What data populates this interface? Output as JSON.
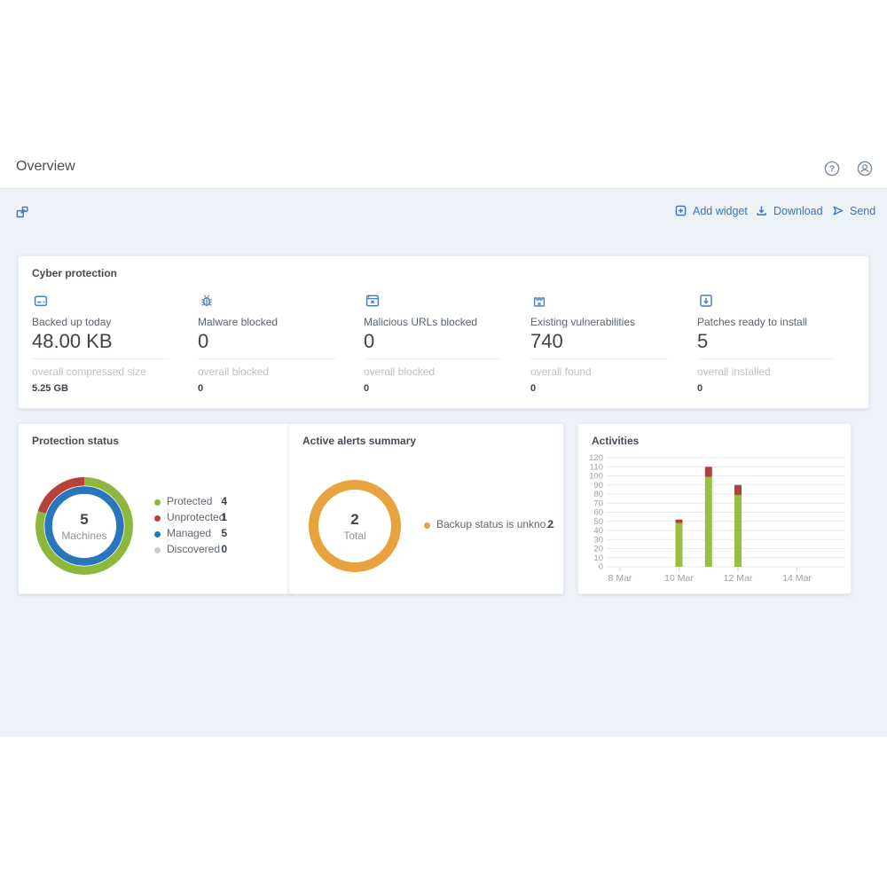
{
  "header": {
    "title": "Overview"
  },
  "header_icons": {
    "help": "help-icon",
    "account": "account-icon"
  },
  "toolbar": {
    "buttons": [
      {
        "icon": "add-widget-icon",
        "label": "Add widget"
      },
      {
        "icon": "download-icon",
        "label": "Download"
      },
      {
        "icon": "send-icon",
        "label": "Send"
      }
    ]
  },
  "cyber_protection": {
    "title": "Cyber protection",
    "stats": [
      {
        "icon": "backup-drive-icon",
        "label": "Backed up today",
        "value": "48.00 KB",
        "sub_label": "overall compressed size",
        "sub_value": "5.25 GB"
      },
      {
        "icon": "malware-bug-icon",
        "label": "Malware blocked",
        "value": "0",
        "sub_label": "overall blocked",
        "sub_value": "0"
      },
      {
        "icon": "malicious-url-icon",
        "label": "Malicious URLs blocked",
        "value": "0",
        "sub_label": "overall blocked",
        "sub_value": "0"
      },
      {
        "icon": "vulnerability-icon",
        "label": "Existing vulnerabilities",
        "value": "740",
        "sub_label": "overall found",
        "sub_value": "0"
      },
      {
        "icon": "patch-icon",
        "label": "Patches ready to install",
        "value": "5",
        "sub_label": "overall installed",
        "sub_value": "0"
      }
    ]
  },
  "chart_data": [
    {
      "type": "pie",
      "variant": "double-ring-donut",
      "title": "Protection status",
      "center": {
        "value": "5",
        "label": "Machines"
      },
      "outer_ring": [
        {
          "label": "Protected",
          "value": 4,
          "color": "#8fb73e"
        },
        {
          "label": "Unprotected",
          "value": 1,
          "color": "#b7423a"
        }
      ],
      "inner_ring": [
        {
          "label": "Managed",
          "value": 5,
          "color": "#2a76bc"
        }
      ],
      "legend": [
        {
          "label": "Protected",
          "value": 4,
          "color": "#8fb73e"
        },
        {
          "label": "Unprotected",
          "value": 1,
          "color": "#b7423a"
        },
        {
          "label": "Managed",
          "value": 5,
          "color": "#2a76bc"
        },
        {
          "label": "Discovered",
          "value": 0,
          "color": "#c9cdd3"
        }
      ],
      "legend_position": "right"
    },
    {
      "type": "pie",
      "variant": "donut",
      "title": "Active alerts summary",
      "center": {
        "value": "2",
        "label": "Total"
      },
      "segments": [
        {
          "label": "Backup status is unkno...",
          "value": 2,
          "color": "#e8a33c"
        }
      ],
      "legend": [
        {
          "label": "Backup status is unkno...",
          "value": 2,
          "color": "#e8a33c"
        }
      ],
      "legend_position": "right"
    },
    {
      "type": "bar",
      "variant": "stacked",
      "title": "Activities",
      "ylim": [
        0,
        120
      ],
      "ytick_step": 10,
      "grid": true,
      "x_ticks": [
        {
          "day": 8,
          "label": "8 Mar"
        },
        {
          "day": 10,
          "label": "10 Mar"
        },
        {
          "day": 12,
          "label": "12 Mar"
        },
        {
          "day": 14,
          "label": "14 Mar"
        }
      ],
      "colors": {
        "green": "#9abe3f",
        "red": "#b2413a"
      },
      "bars": [
        {
          "day": 10,
          "green": 48,
          "red": 4
        },
        {
          "day": 11,
          "green": 99,
          "red": 11
        },
        {
          "day": 12,
          "green": 79,
          "red": 11
        }
      ]
    }
  ]
}
